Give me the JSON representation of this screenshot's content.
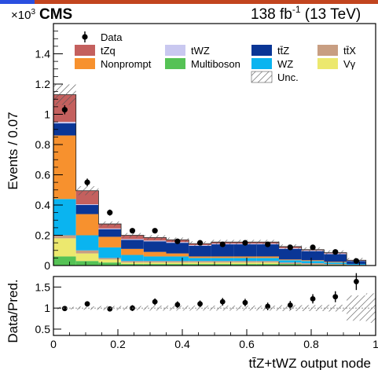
{
  "colors": {
    "tZq": "#c4605e",
    "Nonprompt": "#f7912e",
    "tWZ": "#c9c8f0",
    "Multiboson": "#55c255",
    "ttZ": "#0a3696",
    "WZ": "#0ab4f0",
    "ttX": "#c89e82",
    "Vgamma": "#ece86e",
    "data": "#000000",
    "hatch": "#555555",
    "top_blue": "#2a4fe0",
    "top_red": "#c2451f"
  },
  "chart_data": [
    {
      "type": "bar",
      "stacked": true,
      "experiment": "CMS",
      "lumi": "138 fb",
      "lumi_sup": "-1",
      "energy": " (13 TeV)",
      "exponent_base": "×10",
      "exponent_sup": "3",
      "ylabel": "Events / 0.07",
      "xlabel": "tt̄Z+tWZ output node",
      "xlim": [
        0,
        1
      ],
      "ylim": [
        0,
        1.6
      ],
      "yticks": [
        0,
        0.2,
        0.4,
        0.6,
        0.8,
        1,
        1.2,
        1.4
      ],
      "ytick_labels": [
        "0",
        "0.2",
        "0.4",
        "0.6",
        "0.8",
        "1",
        "1.2",
        "1.4"
      ],
      "bin_edges": [
        0,
        0.07,
        0.14,
        0.21,
        0.28,
        0.35,
        0.42,
        0.49,
        0.56,
        0.63,
        0.7,
        0.77,
        0.84,
        0.91,
        0.97
      ],
      "series": [
        {
          "name": "Multiboson",
          "key": "Multiboson",
          "values": [
            0.06,
            0.03,
            0.02,
            0.01,
            0.01,
            0.01,
            0.01,
            0.01,
            0.01,
            0.01,
            0.01,
            0.005,
            0.005,
            0.0
          ]
        },
        {
          "name": "Vγ",
          "key": "Vgamma",
          "values": [
            0.12,
            0.05,
            0.02,
            0.01,
            0.01,
            0.01,
            0.01,
            0.01,
            0.01,
            0.01,
            0.0,
            0.0,
            0.0,
            0.0
          ]
        },
        {
          "name": "tt̄X",
          "key": "ttX",
          "values": [
            0.02,
            0.02,
            0.01,
            0.01,
            0.01,
            0.01,
            0.01,
            0.01,
            0.01,
            0.01,
            0.01,
            0.01,
            0.005,
            0.005
          ]
        },
        {
          "name": "WZ",
          "key": "WZ",
          "values": [
            0.24,
            0.1,
            0.07,
            0.04,
            0.03,
            0.03,
            0.02,
            0.02,
            0.02,
            0.02,
            0.015,
            0.015,
            0.01,
            0.005
          ]
        },
        {
          "name": "Nonprompt",
          "key": "Nonprompt",
          "values": [
            0.42,
            0.14,
            0.07,
            0.04,
            0.03,
            0.02,
            0.01,
            0.01,
            0.01,
            0.01,
            0.005,
            0.005,
            0.005,
            0.0
          ]
        },
        {
          "name": "tt̄Z",
          "key": "ttZ",
          "values": [
            0.08,
            0.06,
            0.05,
            0.06,
            0.07,
            0.07,
            0.07,
            0.08,
            0.08,
            0.08,
            0.07,
            0.06,
            0.05,
            0.02
          ]
        },
        {
          "name": "tWZ",
          "key": "tWZ",
          "values": [
            0.01,
            0.005,
            0.005,
            0.005,
            0.005,
            0.005,
            0.005,
            0.005,
            0.005,
            0.005,
            0.005,
            0.005,
            0.005,
            0.002
          ]
        },
        {
          "name": "tZq",
          "key": "tZq",
          "values": [
            0.18,
            0.09,
            0.03,
            0.025,
            0.02,
            0.015,
            0.01,
            0.01,
            0.01,
            0.01,
            0.01,
            0.005,
            0.005,
            0.003
          ]
        }
      ],
      "data_points": {
        "x": [
          0.035,
          0.105,
          0.175,
          0.245,
          0.315,
          0.385,
          0.455,
          0.525,
          0.595,
          0.665,
          0.735,
          0.805,
          0.875,
          0.94
        ],
        "y": [
          1.03,
          0.55,
          0.35,
          0.23,
          0.23,
          0.16,
          0.15,
          0.14,
          0.15,
          0.14,
          0.12,
          0.12,
          0.09,
          0.03
        ],
        "yerr": [
          0.03,
          0.025,
          0.02,
          0.015,
          0.015,
          0.013,
          0.013,
          0.012,
          0.013,
          0.012,
          0.011,
          0.011,
          0.01,
          0.006
        ]
      },
      "legend": {
        "placement": "top",
        "entries": [
          {
            "label": "Data",
            "kind": "data"
          },
          {
            "label": "tZq",
            "key": "tZq"
          },
          {
            "label": "tWZ",
            "key": "tWZ"
          },
          {
            "label": "tt̄Z",
            "key": "ttZ"
          },
          {
            "label": "tt̄X",
            "key": "ttX"
          },
          {
            "label": "Nonprompt",
            "key": "Nonprompt"
          },
          {
            "label": "Multiboson",
            "key": "Multiboson"
          },
          {
            "label": "WZ",
            "key": "WZ"
          },
          {
            "label": "Vγ",
            "key": "Vgamma"
          },
          {
            "label": "Unc.",
            "kind": "hatch"
          }
        ]
      }
    },
    {
      "type": "scatter",
      "ylabel": "Data/Pred.",
      "xlabel": "tt̄Z+tWZ output node",
      "xlim": [
        0,
        1
      ],
      "ylim": [
        0.35,
        1.75
      ],
      "yticks": [
        0.5,
        1,
        1.5
      ],
      "ytick_labels": [
        "0.5",
        "1",
        "1.5"
      ],
      "xticks": [
        0,
        0.2,
        0.4,
        0.6,
        0.8,
        1
      ],
      "xtick_labels": [
        "0",
        "0.2",
        "0.4",
        "0.6",
        "0.8",
        "1"
      ],
      "ratio_points": {
        "x": [
          0.035,
          0.105,
          0.175,
          0.245,
          0.315,
          0.385,
          0.455,
          0.525,
          0.595,
          0.665,
          0.735,
          0.805,
          0.875,
          0.94
        ],
        "y": [
          0.99,
          1.1,
          0.98,
          1.0,
          1.15,
          1.08,
          1.1,
          1.15,
          1.13,
          1.04,
          1.07,
          1.22,
          1.27,
          1.63
        ],
        "yerr": [
          0.03,
          0.05,
          0.06,
          0.07,
          0.08,
          0.08,
          0.08,
          0.09,
          0.09,
          0.09,
          0.1,
          0.11,
          0.13,
          0.2
        ]
      },
      "unc_band": [
        0.03,
        0.04,
        0.05,
        0.05,
        0.06,
        0.06,
        0.06,
        0.06,
        0.06,
        0.06,
        0.07,
        0.07,
        0.08,
        0.3
      ]
    }
  ]
}
